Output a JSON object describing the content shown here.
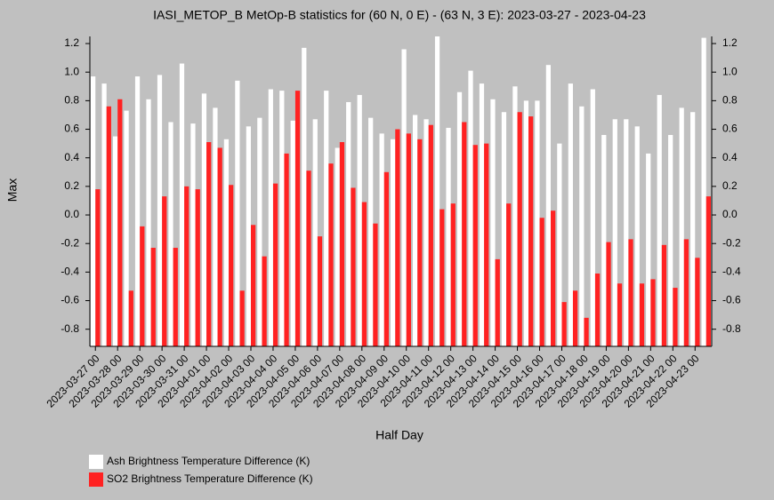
{
  "chart_data": {
    "type": "bar",
    "title": "IASI_METOP_B MetOp-B statistics for (60 N, 0 E) - (63 N, 3 E): 2023-03-27 - 2023-04-23",
    "xlabel": "Half Day",
    "ylabel": "Max",
    "categories": [
      "2023-03-27 00",
      null,
      "2023-03-28 00",
      null,
      "2023-03-29 00",
      null,
      "2023-03-30 00",
      null,
      "2023-03-31 00",
      null,
      "2023-04-01 00",
      null,
      "2023-04-02 00",
      null,
      "2023-04-03 00",
      null,
      "2023-04-04 00",
      null,
      "2023-04-05 00",
      null,
      "2023-04-06 00",
      null,
      "2023-04-07 00",
      null,
      "2023-04-08 00",
      null,
      "2023-04-09 00",
      null,
      "2023-04-10 00",
      null,
      "2023-04-11 00",
      null,
      "2023-04-12 00",
      null,
      "2023-04-13 00",
      null,
      "2023-04-14 00",
      null,
      "2023-04-15 00",
      null,
      "2023-04-16 00",
      null,
      "2023-04-17 00",
      null,
      "2023-04-18 00",
      null,
      "2023-04-19 00",
      null,
      "2023-04-20 00",
      null,
      "2023-04-21 00",
      null,
      "2023-04-22 00",
      null,
      "2023-04-23 00",
      null
    ],
    "series": [
      {
        "name": "Ash Brightness Temperature Difference (K)",
        "color": "#ffffff",
        "values": [
          0.97,
          0.92,
          0.55,
          0.73,
          0.97,
          0.81,
          0.98,
          0.65,
          1.06,
          0.64,
          0.85,
          0.75,
          0.53,
          0.94,
          0.62,
          0.68,
          0.88,
          0.87,
          0.66,
          1.17,
          0.67,
          0.87,
          0.47,
          0.79,
          0.84,
          0.68,
          0.57,
          0.53,
          1.16,
          0.7,
          0.67,
          1.25,
          0.61,
          0.86,
          1.01,
          0.92,
          0.81,
          0.72,
          0.9,
          0.8,
          0.8,
          1.05,
          0.5,
          0.92,
          0.76,
          0.88,
          0.56,
          0.67,
          0.67,
          0.62,
          0.43,
          0.84,
          0.56,
          0.75,
          0.72,
          1.24
        ]
      },
      {
        "name": "SO2 Brightness Temperature Difference (K)",
        "color": "#ff2222",
        "values": [
          0.18,
          0.76,
          0.81,
          -0.53,
          -0.08,
          -0.23,
          0.13,
          -0.23,
          0.2,
          0.18,
          0.51,
          0.47,
          0.21,
          -0.53,
          -0.07,
          -0.29,
          0.22,
          0.43,
          0.87,
          0.31,
          -0.15,
          0.36,
          0.51,
          0.19,
          0.09,
          -0.06,
          0.3,
          0.6,
          0.57,
          0.53,
          0.63,
          0.04,
          0.08,
          0.65,
          0.49,
          0.5,
          -0.31,
          0.08,
          0.72,
          0.69,
          -0.02,
          0.03,
          -0.61,
          -0.53,
          -0.72,
          -0.41,
          -0.19,
          -0.48,
          -0.17,
          -0.48,
          -0.45,
          -0.21,
          -0.51,
          -0.17,
          -0.3,
          0.13
        ]
      }
    ],
    "ylim": [
      -0.92,
      1.25
    ],
    "yticks": [
      -0.8,
      -0.6,
      -0.4,
      -0.2,
      {
        "value": 0,
        "label": "0.0"
      },
      0.2,
      0.4,
      0.6,
      0.8,
      {
        "value": 1,
        "label": "1.0"
      },
      1.2
    ],
    "legend": "bottom-left"
  }
}
